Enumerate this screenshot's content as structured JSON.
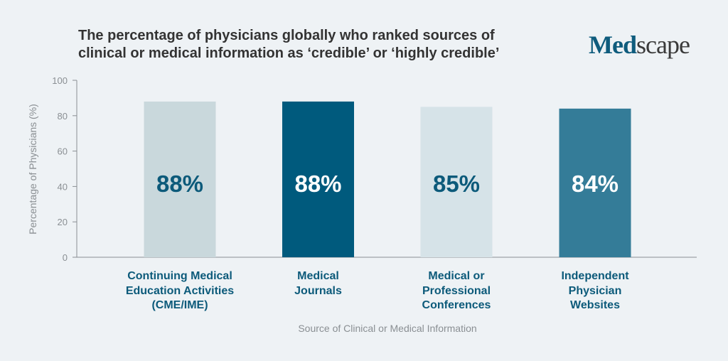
{
  "chart_data": {
    "type": "bar",
    "title": "The percentage of physicians globally who ranked sources of clinical or medical information as ‘credible’ or ‘highly credible’",
    "title_lines": [
      "The percentage of physicians globally who ranked sources of",
      "clinical or medical information as ‘credible’ or ‘highly credible’"
    ],
    "categories": [
      "Continuing Medical\nEducation Activities\n(CME/IME)",
      "Medical\nJournals",
      "Medical or\nProfessional\nConferences",
      "Independent\nPhysician\nWebsites"
    ],
    "values": [
      88,
      88,
      85,
      84
    ],
    "data_labels": [
      "88%",
      "88%",
      "85%",
      "84%"
    ],
    "bar_colors": [
      "#c9d8dc",
      "#005a7d",
      "#d6e3e8",
      "#347c98"
    ],
    "label_colors": [
      "#0c5a7a",
      "#ffffff",
      "#0c5a7a",
      "#ffffff"
    ],
    "xlabel": "Source of Clinical or Medical Information",
    "ylabel": "Percentage of Physicians (%)",
    "ylim": [
      0,
      100
    ],
    "yticks": [
      0,
      20,
      40,
      60,
      80,
      100
    ],
    "grid": false,
    "legend": "none"
  },
  "brand": {
    "logo_part1": "Med",
    "logo_part2": "scape",
    "logo_text": "Medscape"
  }
}
